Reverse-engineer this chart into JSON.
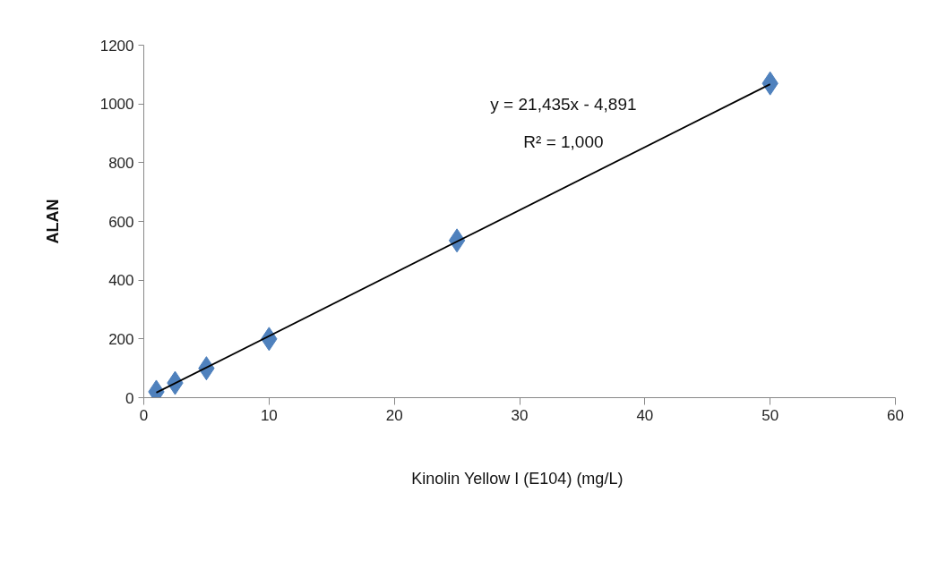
{
  "chart_data": {
    "type": "scatter",
    "xlabel": "Kinolin Yellow I  (E104) (mg/L)",
    "ylabel": "ALAN",
    "annotations": [
      "y = 21,435x - 4,891",
      "R² = 1,000"
    ],
    "series": [
      {
        "color": "#4f81bd",
        "marker": "diamond",
        "x": [
          1,
          2.5,
          5,
          10,
          25,
          50
        ],
        "values": [
          20,
          50,
          100,
          200,
          535,
          1070
        ]
      },
      {
        "type": "line",
        "color": "#000000",
        "marker": "none",
        "line_style": "solid",
        "x": [
          1,
          50
        ],
        "values": [
          17,
          1067
        ]
      }
    ],
    "xlim": [
      0,
      60
    ],
    "ylim": [
      0,
      1200
    ],
    "xticks": [
      0,
      10,
      20,
      30,
      40,
      50,
      60
    ],
    "yticks": [
      0,
      200,
      400,
      600,
      800,
      1000,
      1200
    ],
    "grid": false
  }
}
